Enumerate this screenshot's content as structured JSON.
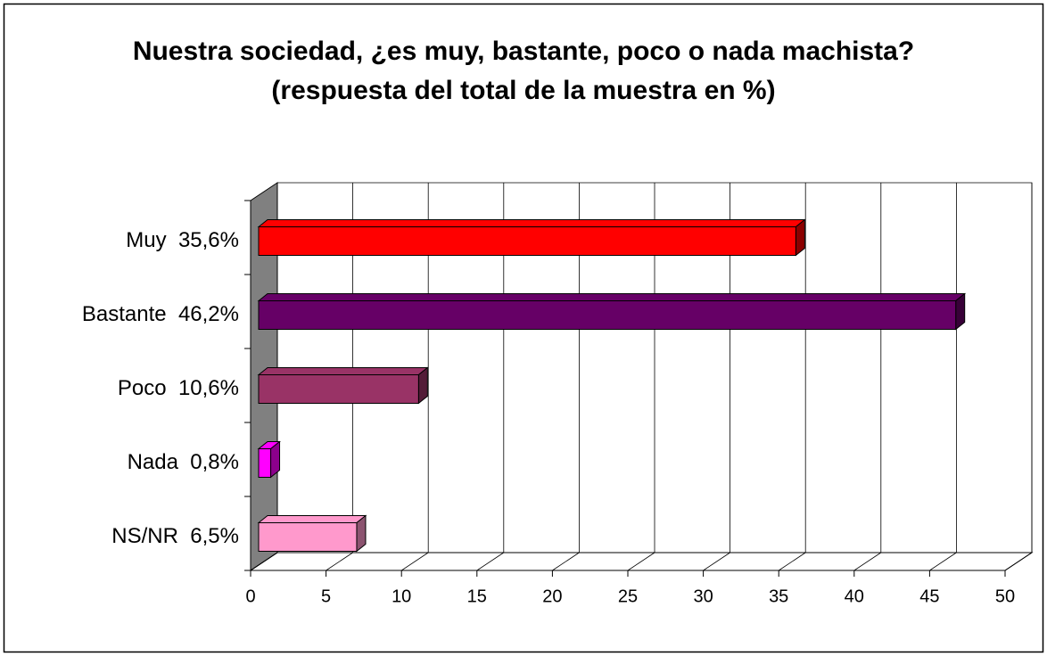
{
  "chart_data": {
    "type": "bar3d_horizontal",
    "title": "Nuestra sociedad, ¿es muy, bastante, poco o nada machista? (respuesta del total de la muestra en %)",
    "categories": [
      "Muy  35,6%",
      "Bastante  46,2%",
      "Poco  10,6%",
      "Nada  0,8%",
      "NS/NR  6,5%"
    ],
    "values": [
      35.6,
      46.2,
      10.6,
      0.8,
      6.5
    ],
    "colors": [
      "#ff0000",
      "#660066",
      "#993366",
      "#ff00ff",
      "#ff99cc"
    ],
    "xlim": [
      0,
      50
    ],
    "xticks": [
      0,
      5,
      10,
      15,
      20,
      25,
      30,
      35,
      40,
      45,
      50
    ],
    "grid": true
  }
}
